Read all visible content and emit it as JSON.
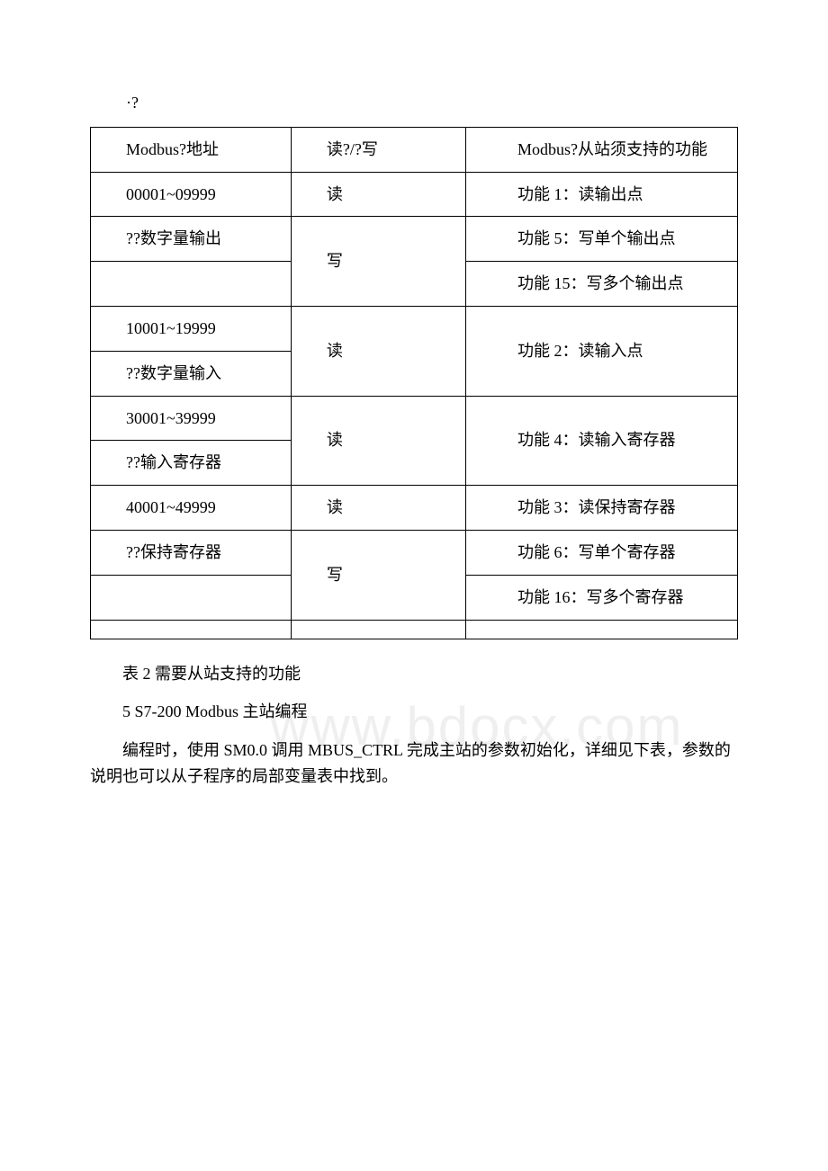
{
  "bullet": "·?",
  "watermark": "www.bdocx.com",
  "table": {
    "header": {
      "c1": "Modbus?地址",
      "c2": "读?/?写",
      "c3": "Modbus?从站须支持的功能"
    },
    "r1": {
      "c1": "00001~09999",
      "c2": "读",
      "c3": "功能 1：读输出点"
    },
    "r2": {
      "c1": "??数字量输出",
      "c2": "写",
      "c3": "功能 5：写单个输出点"
    },
    "r3": {
      "c3": "功能 15：写多个输出点"
    },
    "r4": {
      "c1": "10001~19999",
      "c2": "读",
      "c3": "功能 2：读输入点"
    },
    "r5": {
      "c1": "??数字量输入"
    },
    "r6": {
      "c1": "30001~39999",
      "c2": "读",
      "c3": "功能 4：读输入寄存器"
    },
    "r7": {
      "c1": "??输入寄存器"
    },
    "r8": {
      "c1": "40001~49999",
      "c2": "读",
      "c3": "功能 3：读保持寄存器"
    },
    "r9": {
      "c1": "??保持寄存器",
      "c2": "写",
      "c3": "功能 6：写单个寄存器"
    },
    "r10": {
      "c3": "功能 16：写多个寄存器"
    },
    "r11": {
      "c1": "",
      "c2": "",
      "c3": ""
    }
  },
  "caption": "表 2 需要从站支持的功能",
  "heading": "5 S7-200 Modbus 主站编程",
  "paragraph": "编程时，使用 SM0.0 调用 MBUS_CTRL 完成主站的参数初始化，详细见下表，参数的说明也可以从子程序的局部变量表中找到。"
}
